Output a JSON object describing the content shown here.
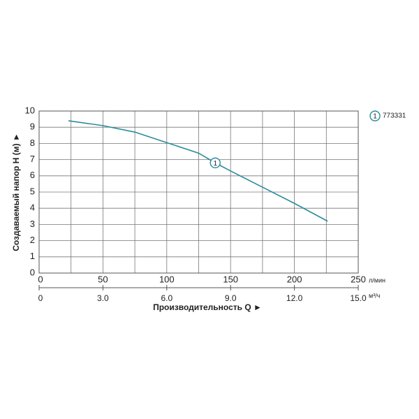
{
  "chart_data": {
    "type": "line",
    "xlabel": "Производительность Q ►",
    "ylabel": "Создаваемый напор H (м) ►",
    "x_unit": "л/мин",
    "x2_unit": "м³/ч",
    "x": [
      23,
      50,
      75,
      100,
      125,
      138,
      150,
      175,
      200,
      226
    ],
    "series": [
      {
        "name": "773331",
        "marker_label": "1",
        "color": "#2b8c9c",
        "values": [
          9.4,
          9.1,
          8.7,
          8.05,
          7.4,
          6.8,
          6.3,
          5.3,
          4.3,
          3.2
        ]
      }
    ],
    "xlim": [
      0,
      250
    ],
    "xticks": [
      0,
      50,
      100,
      150,
      200,
      250
    ],
    "x_minor_ticks": [
      25,
      75,
      125,
      175,
      225
    ],
    "x2lim": [
      0,
      15
    ],
    "x2ticks": [
      0,
      {
        "value": 3,
        "label": "3.0"
      },
      {
        "value": 6,
        "label": "6.0"
      },
      {
        "value": 9,
        "label": "9.0"
      },
      {
        "value": 12,
        "label": "12.0"
      },
      {
        "value": 15,
        "label": "15.0"
      }
    ],
    "ylim": [
      0,
      10
    ],
    "yticks": [
      0,
      1,
      2,
      3,
      4,
      5,
      6,
      7,
      8,
      9,
      10
    ],
    "grid": true
  }
}
